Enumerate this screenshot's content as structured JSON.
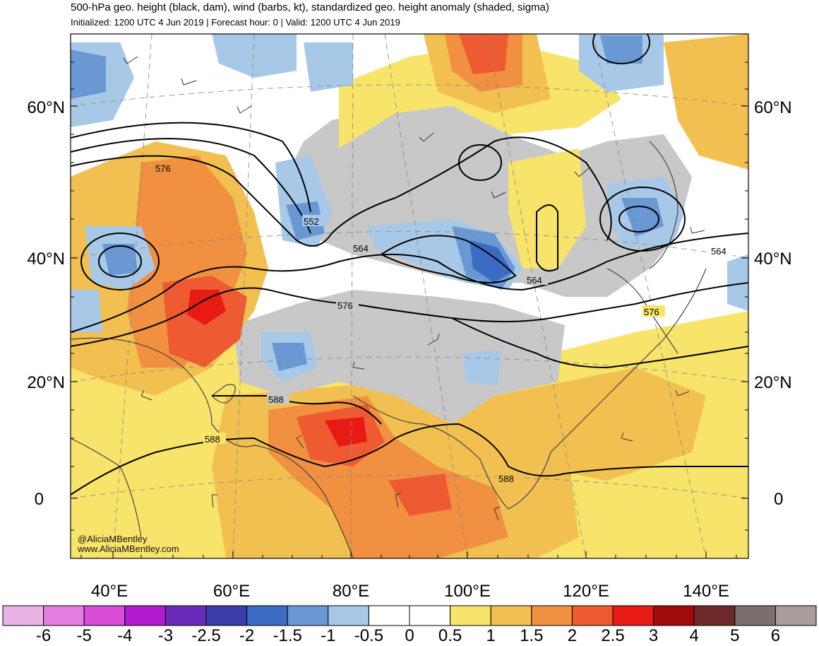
{
  "header": {
    "title": "500-hPa geo. height (black, dam), wind (barbs, kt), standardized geo. height anomaly (shaded, sigma)",
    "subtitle": "Initialized: 1200 UTC 4 Jun 2019 | Forecast hour: 0 | Valid: 1200 UTC 4 Jun 2019"
  },
  "axes": {
    "lat_labels": [
      "60°N",
      "40°N",
      "20°N",
      "0"
    ],
    "lon_labels": [
      "40°E",
      "60°E",
      "80°E",
      "100°E",
      "120°E",
      "140°E"
    ]
  },
  "contours": {
    "labels": [
      "576",
      "552",
      "564",
      "564",
      "564",
      "576",
      "576",
      "588",
      "588",
      "588"
    ]
  },
  "credit": {
    "handle": "@AliciaMBentley",
    "site": "www.AliciaMBentley.com"
  },
  "colorbar": {
    "labels": [
      "-6",
      "-5",
      "-4",
      "-3",
      "-2.5",
      "-2",
      "-1.5",
      "-1",
      "-0.5",
      "0",
      "0.5",
      "1",
      "1.5",
      "2",
      "2.5",
      "3",
      "4",
      "5",
      "6"
    ],
    "colors": [
      "#e8b4e6",
      "#e47ee0",
      "#d84cd8",
      "#b21ad0",
      "#6a2cb8",
      "#3a3ca8",
      "#3b6cc4",
      "#6a98d4",
      "#a8c8e8",
      "#ffffff",
      "#ffffff",
      "#f8e46a",
      "#f2c050",
      "#f09040",
      "#ee5a32",
      "#e81a14",
      "#a00a0a",
      "#6e2a2a",
      "#7a6e6e",
      "#a89c9c"
    ]
  }
}
